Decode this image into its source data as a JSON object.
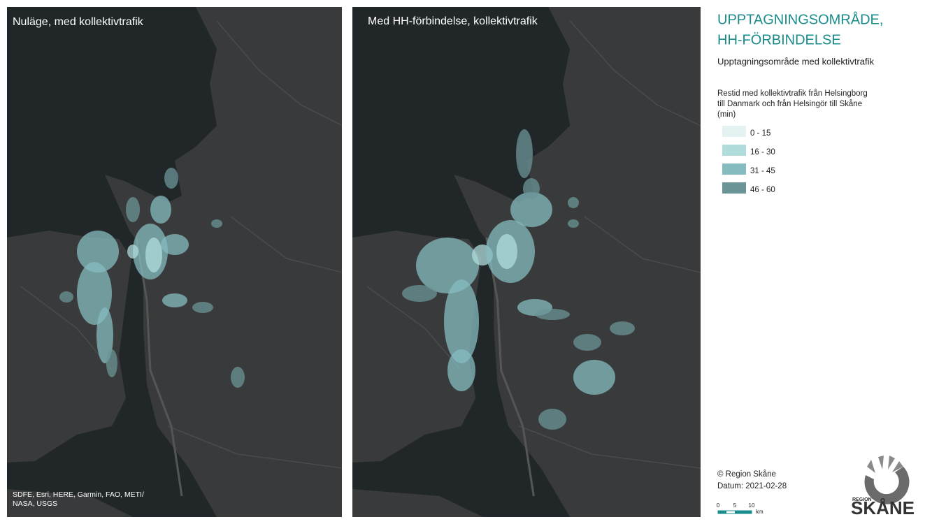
{
  "maps": [
    {
      "title": "Nuläge, med kollektivtrafik",
      "attribution": [
        "SDFE, Esri, HERE, Garmin, FAO, METI/",
        "NASA, USGS"
      ]
    },
    {
      "title": "Med HH-förbindelse, kollektivtrafik"
    }
  ],
  "legend": {
    "title": [
      "UPPTAGNINGSOMRÅDE,",
      "HH-FÖRBINDELSE"
    ],
    "subtitle": "Upptagningsområde med kollektivtrafik",
    "description": [
      "Restid med kollektivtrafik från Helsingborg",
      "till Danmark och från Helsingör till Skåne",
      "(min)"
    ],
    "classes": [
      {
        "label": "0 - 15",
        "color": "#e4f2f2"
      },
      {
        "label": "16 - 30",
        "color": "#b0dcdc"
      },
      {
        "label": "31 - 45",
        "color": "#86bcc0"
      },
      {
        "label": "46 - 60",
        "color": "#6b9497"
      }
    ]
  },
  "footer": {
    "copyright": "© Region Skåne",
    "date": "Datum: 2021-02-28"
  },
  "scale_bar": {
    "ticks": [
      "0",
      "5",
      "10"
    ],
    "unit": "km"
  },
  "logo": {
    "top": "REGION",
    "bottom": "SKÅNE"
  }
}
